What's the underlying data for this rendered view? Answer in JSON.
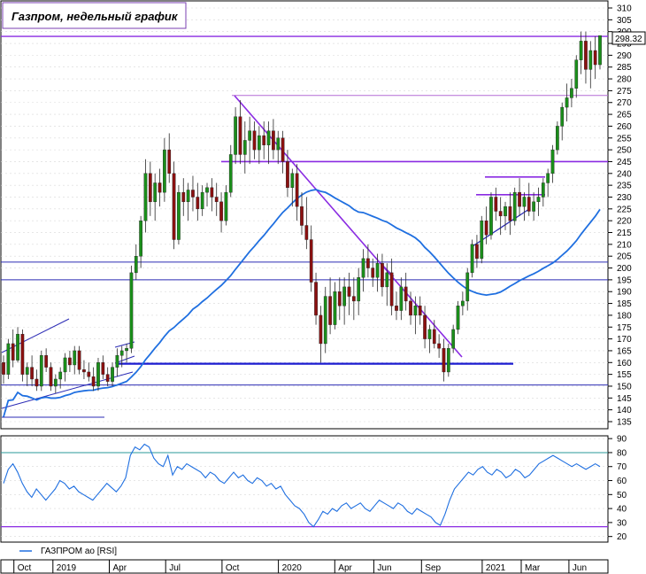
{
  "chart_data": [
    {
      "type": "candlestick",
      "title": "Газпром, недельный график",
      "ylim": [
        132,
        313
      ],
      "y_ticks": [
        135,
        140,
        145,
        150,
        155,
        160,
        165,
        170,
        175,
        180,
        185,
        190,
        195,
        200,
        205,
        210,
        215,
        220,
        225,
        230,
        235,
        240,
        245,
        250,
        255,
        260,
        265,
        270,
        275,
        280,
        285,
        290,
        295,
        300,
        305,
        310
      ],
      "last_price_label": "298.32",
      "x_labels": [
        "Oct",
        "2019",
        "Apr",
        "Jul",
        "Oct",
        "2020",
        "Apr",
        "Jun",
        "Sep",
        "2021",
        "Mar",
        "Jun"
      ],
      "series": [
        {
          "name": "",
          "kind": "ohlc",
          "values": [
            [
              160,
              163,
              151,
              155
            ],
            [
              155,
              170,
              153,
              168
            ],
            [
              168,
              174,
              158,
              161
            ],
            [
              161,
              175,
              160,
              172
            ],
            [
              172,
              174,
              152,
              155
            ],
            [
              155,
              160,
              150,
              158
            ],
            [
              158,
              163,
              150,
              153
            ],
            [
              153,
              157,
              148,
              150
            ],
            [
              150,
              165,
              148,
              163
            ],
            [
              163,
              166,
              156,
              158
            ],
            [
              158,
              160,
              148,
              150
            ],
            [
              150,
              155,
              147,
              153
            ],
            [
              153,
              158,
              149,
              156
            ],
            [
              156,
              164,
              152,
              162
            ],
            [
              162,
              165,
              156,
              159
            ],
            [
              159,
              167,
              155,
              165
            ],
            [
              165,
              167,
              155,
              157
            ],
            [
              157,
              161,
              153,
              156
            ],
            [
              156,
              160,
              152,
              154
            ],
            [
              154,
              158,
              148,
              150
            ],
            [
              150,
              162,
              148,
              160
            ],
            [
              160,
              163,
              153,
              155
            ],
            [
              155,
              158,
              150,
              152
            ],
            [
              152,
              160,
              150,
              158
            ],
            [
              158,
              166,
              154,
              163
            ],
            [
              163,
              167,
              158,
              165
            ],
            [
              165,
              168,
              160,
              166
            ],
            [
              166,
              201,
              164,
              198
            ],
            [
              198,
              210,
              195,
              205
            ],
            [
              205,
              222,
              200,
              220
            ],
            [
              220,
              246,
              215,
              240
            ],
            [
              240,
              245,
              222,
              228
            ],
            [
              228,
              240,
              220,
              236
            ],
            [
              236,
              242,
              226,
              232
            ],
            [
              232,
              255,
              228,
              250
            ],
            [
              250,
              257,
              236,
              240
            ],
            [
              240,
              245,
              208,
              212
            ],
            [
              212,
              235,
              210,
              232
            ],
            [
              232,
              238,
              222,
              228
            ],
            [
              228,
              236,
              220,
              233
            ],
            [
              233,
              239,
              224,
              230
            ],
            [
              230,
              236,
              220,
              225
            ],
            [
              225,
              235,
              222,
              232
            ],
            [
              232,
              236,
              226,
              234
            ],
            [
              234,
              238,
              224,
              230
            ],
            [
              230,
              236,
              222,
              228
            ],
            [
              228,
              232,
              215,
              220
            ],
            [
              220,
              235,
              218,
              232
            ],
            [
              232,
              252,
              230,
              248
            ],
            [
              248,
              268,
              244,
              264
            ],
            [
              264,
              271,
              244,
              248
            ],
            [
              248,
              262,
              240,
              254
            ],
            [
              254,
              264,
              244,
              258
            ],
            [
              258,
              262,
              246,
              250
            ],
            [
              250,
              260,
              244,
              256
            ],
            [
              256,
              262,
              246,
              252
            ],
            [
              252,
              262,
              244,
              258
            ],
            [
              258,
              263,
              246,
              250
            ],
            [
              250,
              258,
              244,
              255
            ],
            [
              255,
              258,
              240,
              245
            ],
            [
              245,
              250,
              230,
              234
            ],
            [
              234,
              242,
              226,
              240
            ],
            [
              240,
              244,
              220,
              226
            ],
            [
              226,
              232,
              214,
              218
            ],
            [
              218,
              230,
              208,
              212
            ],
            [
              212,
              218,
              190,
              194
            ],
            [
              194,
              198,
              176,
              180
            ],
            [
              180,
              184,
              160,
              168
            ],
            [
              168,
              192,
              164,
              188
            ],
            [
              188,
              196,
              172,
              176
            ],
            [
              176,
              194,
              174,
              190
            ],
            [
              190,
              196,
              178,
              184
            ],
            [
              184,
              196,
              176,
              192
            ],
            [
              192,
              198,
              180,
              188
            ],
            [
              188,
              196,
              178,
              186
            ],
            [
              186,
              200,
              180,
              196
            ],
            [
              196,
              208,
              190,
              204
            ],
            [
              204,
              210,
              196,
              200
            ],
            [
              200,
              204,
              192,
              196
            ],
            [
              196,
              206,
              190,
              202
            ],
            [
              202,
              206,
              188,
              192
            ],
            [
              192,
              202,
              184,
              198
            ],
            [
              198,
              204,
              180,
              184
            ],
            [
              184,
              190,
              178,
              182
            ],
            [
              182,
              196,
              178,
              192
            ],
            [
              192,
              198,
              182,
              186
            ],
            [
              186,
              190,
              176,
              180
            ],
            [
              180,
              188,
              172,
              184
            ],
            [
              184,
              188,
              176,
              180
            ],
            [
              180,
              184,
              166,
              170
            ],
            [
              170,
              176,
              164,
              174
            ],
            [
              174,
              178,
              166,
              168
            ],
            [
              168,
              172,
              162,
              166
            ],
            [
              166,
              170,
              152,
              156
            ],
            [
              156,
              168,
              154,
              166
            ],
            [
              166,
              176,
              164,
              174
            ],
            [
              174,
              186,
              172,
              184
            ],
            [
              184,
              190,
              180,
              186
            ],
            [
              186,
              200,
              182,
              198
            ],
            [
              198,
              212,
              196,
              210
            ],
            [
              210,
              214,
              200,
              204
            ],
            [
              204,
              222,
              202,
              220
            ],
            [
              220,
              226,
              210,
              214
            ],
            [
              214,
              232,
              212,
              230
            ],
            [
              230,
              234,
              220,
              224
            ],
            [
              224,
              230,
              214,
              222
            ],
            [
              222,
              228,
              216,
              226
            ],
            [
              226,
              232,
              214,
              220
            ],
            [
              220,
              234,
              218,
              232
            ],
            [
              232,
              238,
              222,
              226
            ],
            [
              226,
              232,
              220,
              230
            ],
            [
              230,
              236,
              222,
              224
            ],
            [
              224,
              232,
              220,
              228
            ],
            [
              228,
              234,
              222,
              230
            ],
            [
              230,
              238,
              226,
              236
            ],
            [
              236,
              242,
              230,
              240
            ],
            [
              240,
              252,
              236,
              250
            ],
            [
              250,
              262,
              248,
              260
            ],
            [
              260,
              270,
              254,
              268
            ],
            [
              268,
              278,
              262,
              272
            ],
            [
              272,
              280,
              268,
              276
            ],
            [
              276,
              290,
              272,
              288
            ],
            [
              288,
              300,
              282,
              296
            ],
            [
              296,
              300,
              278,
              284
            ],
            [
              284,
              296,
              276,
              292
            ],
            [
              292,
              298,
              280,
              286
            ],
            [
              286,
              298,
              284,
              298.32
            ]
          ]
        },
        {
          "name": "",
          "kind": "moving-average",
          "color": "#1f6fe0"
        }
      ],
      "lines": [
        {
          "kind": "horizontal",
          "value": 298
        },
        {
          "kind": "horizontal",
          "value": 273
        },
        {
          "kind": "horizontal",
          "value": 245
        },
        {
          "kind": "horizontal",
          "value": 202.5
        },
        {
          "kind": "horizontal",
          "value": 195
        },
        {
          "kind": "horizontal",
          "value": 150.5
        },
        {
          "kind": "horizontal",
          "value": 159.5
        },
        {
          "kind": "horizontal",
          "value": 238.5
        },
        {
          "kind": "horizontal",
          "value": 231
        }
      ]
    },
    {
      "type": "line",
      "title": "",
      "ylim": [
        16,
        92
      ],
      "y_ticks": [
        20,
        30,
        40,
        50,
        60,
        70,
        80,
        90
      ],
      "reference_lines": [
        80,
        27
      ],
      "legend": "ГАЗПРОМ ао [RSI]",
      "series": [
        {
          "name": "ГАЗПРОМ ао [RSI]",
          "color": "#1f6fe0",
          "values": [
            58,
            68,
            72,
            66,
            58,
            52,
            48,
            54,
            50,
            46,
            50,
            54,
            60,
            58,
            54,
            56,
            52,
            50,
            48,
            46,
            50,
            54,
            58,
            55,
            52,
            56,
            62,
            78,
            84,
            82,
            86,
            84,
            76,
            72,
            70,
            78,
            64,
            70,
            68,
            72,
            70,
            68,
            66,
            62,
            66,
            64,
            60,
            58,
            62,
            66,
            62,
            64,
            60,
            58,
            62,
            60,
            56,
            58,
            54,
            56,
            50,
            46,
            42,
            40,
            36,
            30,
            27,
            32,
            38,
            36,
            40,
            38,
            42,
            44,
            40,
            42,
            44,
            40,
            38,
            42,
            46,
            44,
            42,
            40,
            44,
            42,
            38,
            36,
            40,
            38,
            36,
            34,
            30,
            28,
            36,
            46,
            54,
            58,
            62,
            66,
            64,
            68,
            70,
            66,
            64,
            68,
            66,
            62,
            64,
            68,
            66,
            62,
            64,
            68,
            72,
            74,
            76,
            78,
            76,
            74,
            72,
            70,
            72,
            70,
            68,
            70,
            72,
            70
          ]
        }
      ]
    }
  ]
}
